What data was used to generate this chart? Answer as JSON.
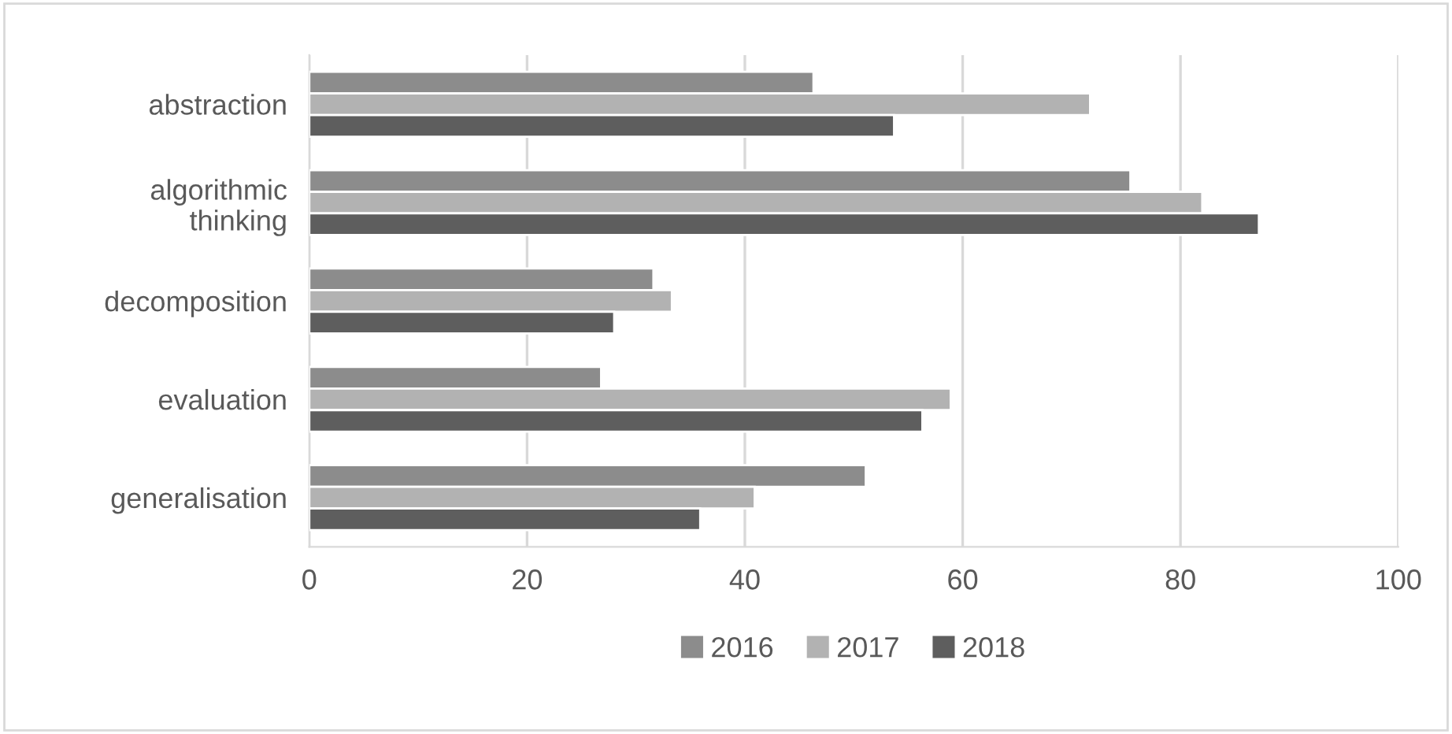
{
  "chart_data": {
    "type": "bar",
    "orientation": "horizontal",
    "categories": [
      "abstraction",
      "algorithmic\nthinking",
      "decomposition",
      "evaluation",
      "generalisation"
    ],
    "series": [
      {
        "name": "2016",
        "color": "#8c8c8c",
        "values": [
          46.3,
          75.4,
          31.6,
          26.8,
          51.1
        ]
      },
      {
        "name": "2017",
        "color": "#b2b2b2",
        "values": [
          71.7,
          82.0,
          33.3,
          58.9,
          40.9
        ]
      },
      {
        "name": "2018",
        "color": "#5e5e5e",
        "values": [
          53.7,
          87.2,
          28.0,
          56.3,
          35.9
        ]
      }
    ],
    "xlim": [
      0,
      100
    ],
    "xticks": [
      0,
      20,
      40,
      60,
      80,
      100
    ],
    "grid": "x",
    "legend": "bottom"
  }
}
